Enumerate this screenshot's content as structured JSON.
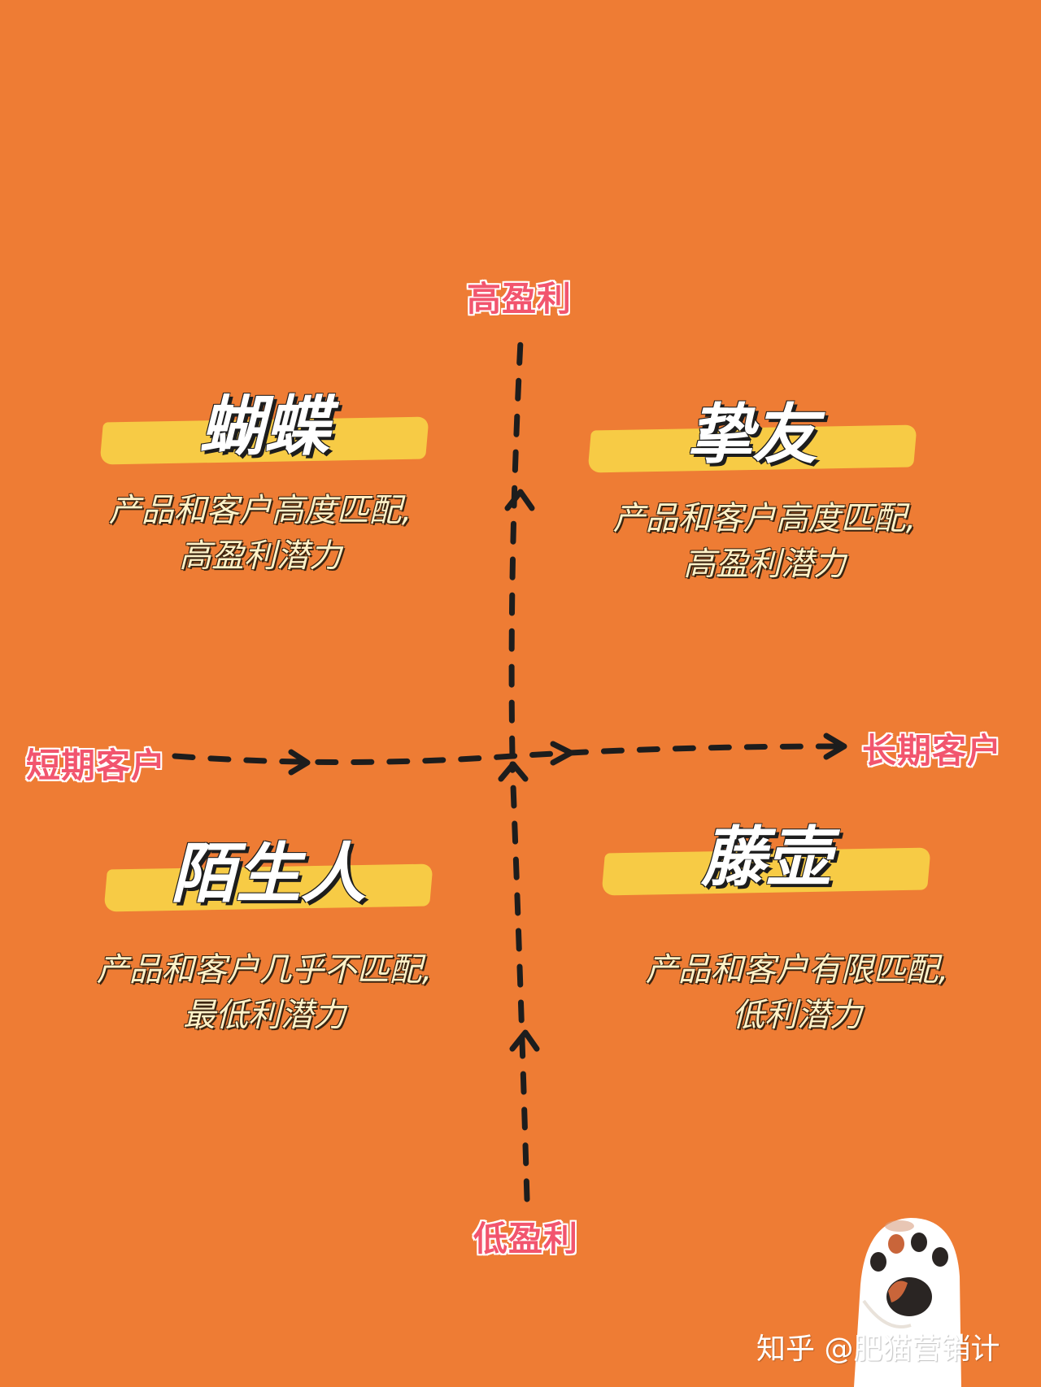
{
  "axes": {
    "top": "高盈利",
    "bottom": "低盈利",
    "left": "短期客户",
    "right": "长期客户"
  },
  "quadrants": {
    "top_left": {
      "title": "蝴蝶",
      "desc_line1": "产品和客户高度匹配,",
      "desc_line2": "高盈利潜力"
    },
    "top_right": {
      "title": "挚友",
      "desc_line1": "产品和客户高度匹配,",
      "desc_line2": "高盈利潜力"
    },
    "bottom_left": {
      "title": "陌生人",
      "desc_line1": "产品和客户几乎不匹配,",
      "desc_line2": "最低利潜力"
    },
    "bottom_right": {
      "title": "藤壶",
      "desc_line1": "产品和客户有限匹配,",
      "desc_line2": "低利潜力"
    }
  },
  "watermark": "知乎 @肥猫营销计",
  "colors": {
    "background": "#ee7c34",
    "axis_label": "#f2556e",
    "highlight": "#f7cb45",
    "arrow": "#1d1d1d"
  },
  "icons": {
    "mascot": "cat-paw-icon"
  }
}
